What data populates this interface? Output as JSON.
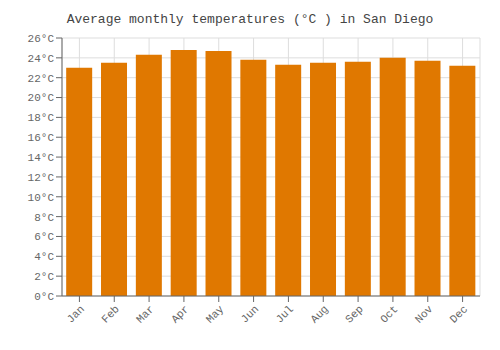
{
  "chart_data": {
    "type": "bar",
    "title": "Average monthly temperatures (°C ) in San Diego",
    "categories": [
      "Jan",
      "Feb",
      "Mar",
      "Apr",
      "May",
      "Jun",
      "Jul",
      "Aug",
      "Sep",
      "Oct",
      "Nov",
      "Dec"
    ],
    "values": [
      23.0,
      23.5,
      24.3,
      24.8,
      24.7,
      23.8,
      23.3,
      23.5,
      23.6,
      24.0,
      23.7,
      23.2
    ],
    "color": "#E07800",
    "ylim": [
      0,
      26
    ],
    "yticks": [
      {
        "value": 0,
        "label": "0°C"
      },
      {
        "value": 2,
        "label": "2°C"
      },
      {
        "value": 4,
        "label": "4°C"
      },
      {
        "value": 6,
        "label": "6°C"
      },
      {
        "value": 8,
        "label": "8°C"
      },
      {
        "value": 10,
        "label": "10°C"
      },
      {
        "value": 12,
        "label": "12°C"
      },
      {
        "value": 14,
        "label": "14°C"
      },
      {
        "value": 16,
        "label": "16°C"
      },
      {
        "value": 18,
        "label": "18°C"
      },
      {
        "value": 20,
        "label": "20°C"
      },
      {
        "value": 22,
        "label": "22°C"
      },
      {
        "value": 24,
        "label": "24°C"
      },
      {
        "value": 26,
        "label": "26°C"
      }
    ],
    "grid": true
  }
}
